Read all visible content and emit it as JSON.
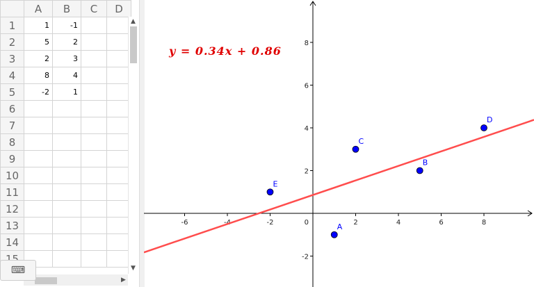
{
  "spreadsheet": {
    "columns": [
      "A",
      "B",
      "C",
      "D"
    ],
    "rows": [
      {
        "n": "1",
        "A": "1",
        "B": "-1"
      },
      {
        "n": "2",
        "A": "5",
        "B": "2"
      },
      {
        "n": "3",
        "A": "2",
        "B": "3"
      },
      {
        "n": "4",
        "A": "8",
        "B": "4"
      },
      {
        "n": "5",
        "A": "-2",
        "B": "1"
      },
      {
        "n": "6"
      },
      {
        "n": "7"
      },
      {
        "n": "8"
      },
      {
        "n": "9"
      },
      {
        "n": "10"
      },
      {
        "n": "11"
      },
      {
        "n": "12"
      },
      {
        "n": "13"
      },
      {
        "n": "14"
      },
      {
        "n": "15"
      }
    ]
  },
  "keyboard_icon": "keyboard-icon",
  "graphics": {
    "equation": "y = 0.34x + 0.86",
    "line": {
      "slope": 0.34,
      "intercept": 0.86,
      "color": "#ff4d4d"
    },
    "point_color": "#0000ff",
    "points": [
      {
        "label": "A",
        "x": 1,
        "y": -1
      },
      {
        "label": "B",
        "x": 5,
        "y": 2
      },
      {
        "label": "C",
        "x": 2,
        "y": 3
      },
      {
        "label": "D",
        "x": 8,
        "y": 4
      },
      {
        "label": "E",
        "x": -2,
        "y": 1
      }
    ],
    "x_ticks": [
      "-6",
      "-4",
      "-2",
      "2",
      "4",
      "6",
      "8"
    ],
    "y_ticks": [
      "8",
      "6",
      "4",
      "2",
      "-2"
    ],
    "origin_label": "0"
  }
}
